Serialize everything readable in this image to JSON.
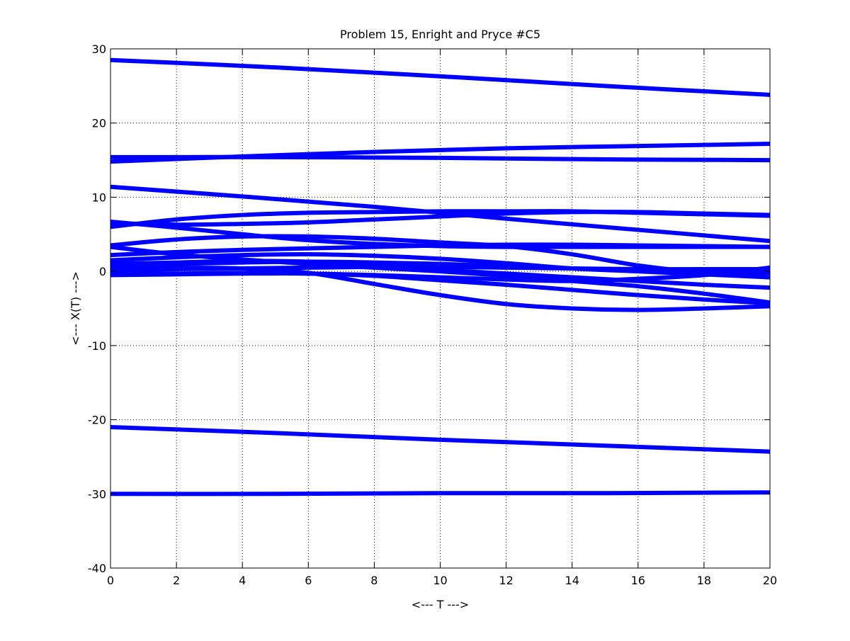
{
  "chart_data": {
    "type": "line",
    "title": "Problem 15, Enright and Pryce #C5",
    "xlabel": "<--- T --->",
    "ylabel": "<--- X(T) --->",
    "xlim": [
      0,
      20
    ],
    "ylim": [
      -40,
      30
    ],
    "xticks": [
      0,
      2,
      4,
      6,
      8,
      10,
      12,
      14,
      16,
      18,
      20
    ],
    "yticks": [
      -40,
      -30,
      -20,
      -10,
      0,
      10,
      20,
      30
    ],
    "xtick_labels": [
      "0",
      "2",
      "4",
      "6",
      "8",
      "10",
      "12",
      "14",
      "16",
      "18",
      "20"
    ],
    "ytick_labels": [
      "-40",
      "-30",
      "-20",
      "-10",
      "0",
      "10",
      "20",
      "30"
    ],
    "grid": true,
    "grid_style": "dotted",
    "line_color": "#0000ff",
    "background_color": "#ffffff",
    "series": [
      {
        "x": [
          0,
          5,
          10,
          15,
          20
        ],
        "y": [
          28.5,
          27.5,
          26.3,
          25.0,
          23.8
        ]
      },
      {
        "x": [
          0,
          4,
          8,
          12,
          16,
          20
        ],
        "y": [
          14.8,
          15.5,
          16.1,
          16.6,
          16.9,
          17.2
        ]
      },
      {
        "x": [
          0,
          5,
          10,
          15,
          20
        ],
        "y": [
          15.4,
          15.4,
          15.3,
          15.1,
          15.0
        ]
      },
      {
        "x": [
          0,
          4,
          8,
          12,
          16,
          20
        ],
        "y": [
          11.4,
          10.1,
          8.7,
          7.1,
          5.6,
          4.1
        ]
      },
      {
        "x": [
          0,
          2,
          4,
          6,
          8,
          10,
          12,
          14,
          16,
          18,
          20
        ],
        "y": [
          6.0,
          7.0,
          7.6,
          7.9,
          8.0,
          8.1,
          8.1,
          8.1,
          7.9,
          7.7,
          7.5
        ]
      },
      {
        "x": [
          0,
          2,
          4,
          6,
          8,
          10,
          12,
          14,
          16,
          18,
          20
        ],
        "y": [
          6.5,
          6.3,
          6.4,
          6.6,
          7.0,
          7.4,
          7.8,
          8.0,
          8.0,
          7.8,
          7.6
        ]
      },
      {
        "x": [
          0,
          2,
          4,
          6,
          8,
          10,
          12,
          14,
          16,
          18,
          20
        ],
        "y": [
          6.7,
          5.9,
          5.0,
          4.2,
          3.7,
          3.4,
          3.3,
          3.3,
          3.3,
          3.3,
          3.3
        ]
      },
      {
        "x": [
          0,
          2,
          4,
          6,
          8,
          10,
          12,
          14,
          16,
          18,
          20
        ],
        "y": [
          3.5,
          4.3,
          4.7,
          4.7,
          4.4,
          3.9,
          3.4,
          2.3,
          0.8,
          -0.2,
          -0.8
        ]
      },
      {
        "x": [
          0,
          2,
          4,
          6,
          8,
          10,
          12,
          14,
          16,
          18,
          20
        ],
        "y": [
          3.3,
          2.3,
          1.6,
          1.0,
          0.5,
          0.0,
          -0.6,
          -1.3,
          -2.0,
          -3.0,
          -4.2
        ]
      },
      {
        "x": [
          0,
          2,
          4,
          6,
          8,
          10,
          12,
          14,
          16,
          18,
          20
        ],
        "y": [
          2.2,
          2.6,
          2.9,
          3.1,
          3.3,
          3.5,
          3.6,
          3.6,
          3.5,
          3.4,
          3.3
        ]
      },
      {
        "x": [
          0,
          2,
          4,
          6,
          8,
          10,
          12,
          14,
          16,
          18,
          20
        ],
        "y": [
          1.5,
          1.9,
          2.2,
          2.3,
          2.1,
          1.7,
          1.1,
          0.4,
          0.0,
          -0.4,
          -0.8
        ]
      },
      {
        "x": [
          0,
          2,
          4,
          6,
          8,
          10,
          12,
          14,
          16,
          18,
          20
        ],
        "y": [
          0.8,
          1.0,
          1.2,
          1.3,
          1.2,
          1.0,
          0.7,
          0.4,
          0.1,
          -0.1,
          -0.2
        ]
      },
      {
        "x": [
          0,
          2,
          4,
          6,
          8,
          10,
          12,
          14,
          16,
          18,
          20
        ],
        "y": [
          0.1,
          0.3,
          0.4,
          0.5,
          0.6,
          0.6,
          0.5,
          0.4,
          0.3,
          0.3,
          0.3
        ]
      },
      {
        "x": [
          0,
          2,
          4,
          6,
          8,
          10,
          12,
          14,
          16,
          18,
          20
        ],
        "y": [
          -0.3,
          -0.3,
          -0.2,
          -0.3,
          -0.5,
          -0.8,
          -1.1,
          -1.3,
          -1.0,
          -0.5,
          0.5
        ]
      },
      {
        "x": [
          0,
          2,
          4,
          6,
          8,
          10,
          12,
          14,
          16,
          18,
          20
        ],
        "y": [
          -0.5,
          -0.4,
          -0.3,
          -0.3,
          -0.6,
          -1.2,
          -1.8,
          -2.5,
          -3.2,
          -3.8,
          -4.3
        ]
      },
      {
        "x": [
          0,
          2,
          4,
          6,
          8,
          10,
          12,
          14,
          16,
          18,
          20
        ],
        "y": [
          0.6,
          0.5,
          0.4,
          -0.2,
          -1.7,
          -3.2,
          -4.4,
          -5.0,
          -5.2,
          -5.0,
          -4.7
        ]
      },
      {
        "x": [
          0,
          2,
          4,
          6,
          8,
          10,
          12,
          14,
          16,
          18,
          20
        ],
        "y": [
          1.0,
          1.2,
          1.4,
          1.3,
          0.8,
          0.2,
          -0.3,
          -0.8,
          -1.3,
          -1.8,
          -2.2
        ]
      },
      {
        "x": [
          0,
          5,
          10,
          15,
          20
        ],
        "y": [
          -21.0,
          -21.8,
          -22.7,
          -23.5,
          -24.3
        ]
      },
      {
        "x": [
          0,
          5,
          10,
          15,
          20
        ],
        "y": [
          -30.0,
          -30.0,
          -29.9,
          -29.9,
          -29.8
        ]
      }
    ]
  }
}
